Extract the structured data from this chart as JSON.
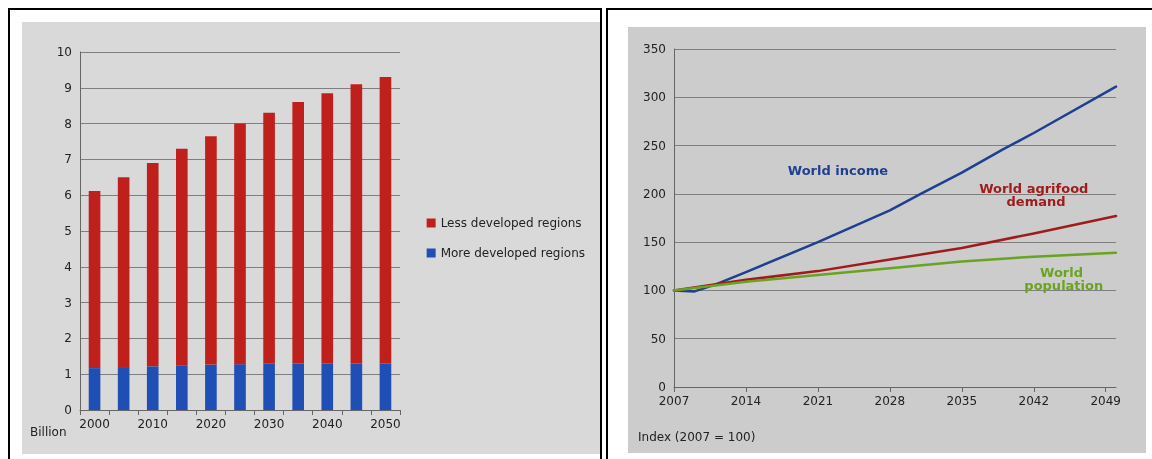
{
  "chart_data": [
    {
      "type": "bar",
      "ylabel": "Billion",
      "stacked": true,
      "grid": "y",
      "legend": "right",
      "categories": [
        "2000",
        null,
        "2010",
        null,
        "2020",
        null,
        "2030",
        null,
        "2040",
        null,
        "2050"
      ],
      "ylim": [
        0,
        10
      ],
      "yticks": [
        0,
        1,
        2,
        3,
        4,
        5,
        6,
        7,
        8,
        9,
        10
      ],
      "series": [
        {
          "name": "More developed regions",
          "color": "#1f4fb4",
          "values": [
            1.17,
            1.2,
            1.22,
            1.25,
            1.27,
            1.28,
            1.29,
            1.3,
            1.3,
            1.3,
            1.3
          ]
        },
        {
          "name": "Less developed regions",
          "color": "#c0201c",
          "values": [
            4.95,
            5.3,
            5.68,
            6.05,
            6.38,
            6.72,
            7.01,
            7.3,
            7.55,
            7.8,
            8.0
          ]
        }
      ]
    },
    {
      "type": "line",
      "ylabel": "Index (2007 = 100)",
      "grid": "y",
      "legend": false,
      "marker": "none",
      "xlim": [
        2007,
        2050
      ],
      "xticks": [
        2007,
        2014,
        2021,
        2028,
        2035,
        2042,
        2049
      ],
      "ylim": [
        0,
        350
      ],
      "yticks": [
        0,
        50,
        100,
        150,
        200,
        250,
        300,
        350
      ],
      "series": [
        {
          "name": "World income",
          "color": "#1f3f8f",
          "x": [
            2007,
            2009,
            2011,
            2014,
            2021,
            2028,
            2031,
            2035,
            2039,
            2042,
            2050
          ],
          "values": [
            100,
            99,
            106,
            119,
            150,
            183,
            200,
            222,
            246,
            263,
            311
          ]
        },
        {
          "name": "World agrifood demand",
          "color": "#a01c1c",
          "x": [
            2007,
            2014,
            2021,
            2028,
            2035,
            2042,
            2050
          ],
          "values": [
            100,
            111,
            120,
            132,
            144,
            159,
            177
          ]
        },
        {
          "name": "World population",
          "color": "#6aa321",
          "x": [
            2007,
            2014,
            2021,
            2028,
            2035,
            2042,
            2050
          ],
          "values": [
            100,
            109,
            116,
            123,
            130,
            135,
            139
          ]
        }
      ]
    }
  ]
}
